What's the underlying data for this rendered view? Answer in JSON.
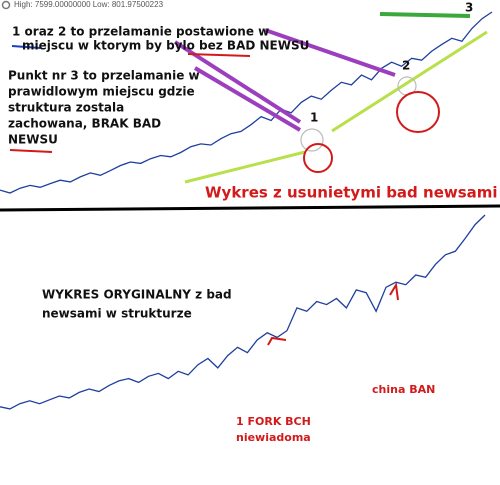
{
  "header": "High: 7599.00000000  Low: 801.97500223",
  "notes": [
    {
      "lines": [
        "1 oraz 2 to przelamanie postawione w",
        "miejscu w ktorym by bylo bez BAD NEWSU"
      ]
    },
    {
      "lines": [
        "Punkt nr 3 to przelamanie w",
        "prawidlowym miejscu gdzie",
        "struktura zostala",
        "zachowana, BRAK BAD",
        "NEWSU"
      ]
    }
  ],
  "points": [
    "1",
    "2",
    "3"
  ],
  "titles": [
    "Wykres z usunietymi bad newsami",
    [
      "WYKRES ORYGINALNY z bad",
      "newsami w strukturze"
    ]
  ],
  "events": [
    [
      "1 FORK BCH",
      "niewiadoma"
    ],
    "china BAN"
  ],
  "chart_data": [
    {
      "type": "line",
      "log_scale": true,
      "ylim": [
        800,
        7600
      ],
      "color": "#1f3f9f",
      "values": [
        850,
        820,
        870,
        900,
        880,
        920,
        960,
        940,
        1000,
        1050,
        1020,
        1080,
        1150,
        1200,
        1180,
        1250,
        1300,
        1280,
        1350,
        1450,
        1500,
        1480,
        1600,
        1700,
        1750,
        1900,
        2100,
        2000,
        2300,
        2200,
        2500,
        2700,
        2600,
        2900,
        3200,
        3100,
        3500,
        3300,
        3800,
        4100,
        3900,
        4300,
        4200,
        4700,
        5100,
        5500,
        5300,
        6200,
        7000,
        7600
      ]
    },
    {
      "type": "line",
      "log_scale": true,
      "ylim": [
        800,
        7600
      ],
      "color": "#1f3f9f",
      "values": [
        830,
        810,
        860,
        890,
        860,
        900,
        940,
        920,
        980,
        1020,
        990,
        1060,
        1120,
        1150,
        1100,
        1180,
        1220,
        1150,
        1250,
        1200,
        1350,
        1450,
        1300,
        1500,
        1650,
        1550,
        1800,
        1950,
        1850,
        2000,
        2600,
        2500,
        2800,
        2700,
        2900,
        2600,
        3200,
        3100,
        2500,
        3300,
        3500,
        3400,
        3800,
        3700,
        4300,
        4800,
        5000,
        5800,
        6800,
        7600
      ]
    }
  ]
}
